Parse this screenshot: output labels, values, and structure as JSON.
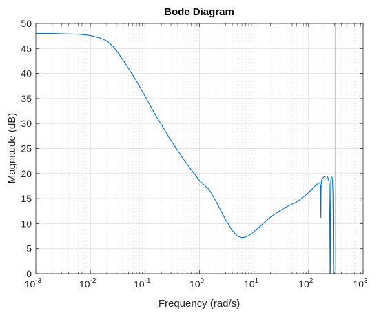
{
  "chart_data": {
    "type": "line",
    "title": "Bode Diagram",
    "xlabel": "Frequency  (rad/s)",
    "ylabel": "Magnitude (dB)",
    "x_scale": "log",
    "xlim": [
      0.001,
      1000
    ],
    "ylim": [
      0,
      50
    ],
    "x_tick_labels": [
      {
        "base": "10",
        "exp": "-3"
      },
      {
        "base": "10",
        "exp": "-2"
      },
      {
        "base": "10",
        "exp": "-1"
      },
      {
        "base": "10",
        "exp": "0"
      },
      {
        "base": "10",
        "exp": "1"
      },
      {
        "base": "10",
        "exp": "2"
      },
      {
        "base": "10",
        "exp": "3"
      }
    ],
    "y_ticks": [
      "0",
      "5",
      "10",
      "15",
      "20",
      "25",
      "30",
      "35",
      "40",
      "45",
      "50"
    ],
    "grid": true,
    "series_color": "#0072BD",
    "series": [
      {
        "x": [
          0.001,
          0.002,
          0.004,
          0.006,
          0.01,
          0.015,
          0.02,
          0.025,
          0.03,
          0.04,
          0.05,
          0.07,
          0.1,
          0.15,
          0.2,
          0.3,
          0.5,
          0.7,
          1.0,
          1.5,
          2.0,
          3.0,
          4.0,
          5.0,
          6.0,
          7.0,
          8.0,
          10,
          15,
          20,
          30,
          40,
          60,
          80,
          100,
          120,
          140,
          150,
          160,
          165,
          168,
          170,
          172,
          175,
          180,
          190,
          200,
          210,
          220,
          230,
          240,
          245,
          248,
          250,
          252,
          255,
          260,
          265,
          270,
          275,
          280,
          283,
          286,
          290,
          295,
          300,
          310,
          315
        ],
        "y": [
          48.0,
          48.0,
          47.9,
          47.85,
          47.6,
          47.1,
          46.5,
          45.6,
          44.6,
          42.6,
          41.0,
          38.5,
          35.5,
          32.0,
          29.8,
          26.6,
          23.0,
          20.8,
          18.6,
          16.8,
          14.5,
          10.8,
          8.6,
          7.5,
          7.2,
          7.3,
          7.6,
          8.4,
          10.1,
          11.3,
          12.6,
          13.4,
          14.3,
          15.3,
          16.2,
          17.1,
          17.8,
          18.0,
          18.2,
          17.5,
          11.2,
          17.8,
          18.5,
          18.8,
          19.0,
          19.3,
          19.4,
          19.5,
          19.4,
          19.0,
          18.0,
          10.0,
          0,
          0,
          12.0,
          18.5,
          19.2,
          19.3,
          19.2,
          18.5,
          16.0,
          8.0,
          0,
          0,
          0,
          0,
          0,
          0
        ]
      }
    ],
    "vertical_line": {
      "x": 315,
      "color": "#000000"
    }
  }
}
